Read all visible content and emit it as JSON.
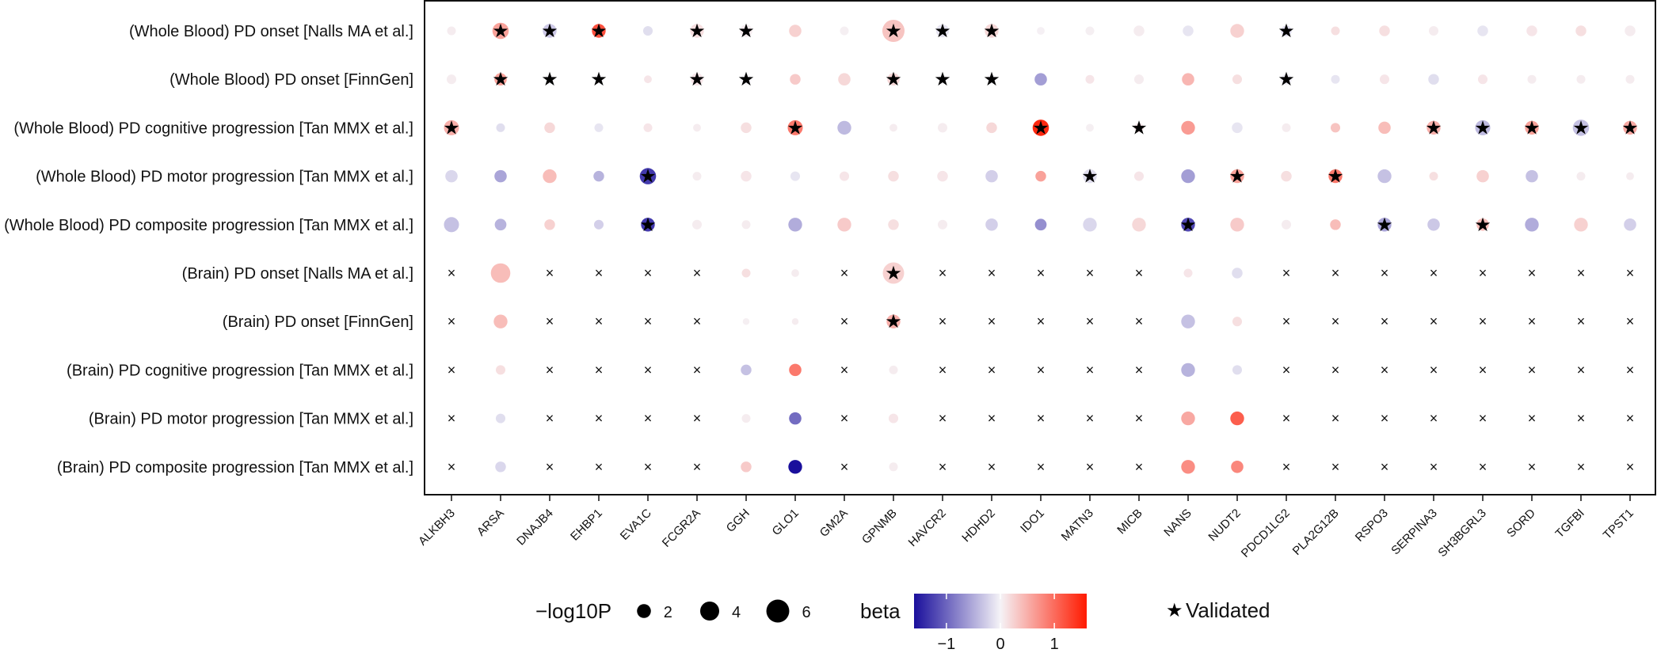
{
  "chart_data": {
    "type": "scatter",
    "title": "",
    "xlabel": "",
    "ylabel": "",
    "rows": [
      "(Whole Blood) PD onset [Nalls MA et al.]",
      "(Whole Blood) PD onset [FinnGen]",
      "(Whole Blood) PD cognitive progression [Tan MMX et al.]",
      "(Whole Blood) PD motor progression [Tan MMX et al.]",
      "(Whole Blood) PD composite progression [Tan MMX et al.]",
      "(Brain) PD onset [Nalls MA et al.]",
      "(Brain) PD onset [FinnGen]",
      "(Brain) PD cognitive progression [Tan MMX et al.]",
      "(Brain) PD motor progression [Tan MMX et al.]",
      "(Brain) PD composite progression [Tan MMX et al.]"
    ],
    "columns": [
      "ALKBH3",
      "ARSA",
      "DNAJB4",
      "EHBP1",
      "EVA1C",
      "FCGR2A",
      "GGH",
      "GLO1",
      "GM2A",
      "GPNMB",
      "HAVCR2",
      "HDHD2",
      "IDO1",
      "MATN3",
      "MICB",
      "NANS",
      "NUDT2",
      "PDCD1LG2",
      "PLA2G12B",
      "RSPO3",
      "SERPINA3",
      "SH3BGRL3",
      "SORD",
      "TGFBI",
      "TPST1"
    ],
    "beta": [
      [
        0.05,
        0.6,
        -0.3,
        1.2,
        -0.15,
        0.15,
        0.05,
        0.25,
        0.03,
        0.35,
        -0.1,
        0.2,
        0.02,
        0.03,
        0.05,
        -0.1,
        0.25,
        -0.15,
        0.15,
        0.15,
        0.05,
        -0.1,
        0.1,
        0.15,
        0.05
      ],
      [
        0.05,
        0.6,
        0.0,
        0.0,
        0.1,
        0.1,
        0.0,
        0.3,
        0.2,
        0.2,
        0.0,
        0.0,
        -0.6,
        0.1,
        0.05,
        0.45,
        0.15,
        -0.05,
        -0.1,
        0.1,
        -0.15,
        0.1,
        0.05,
        0.05,
        0.05
      ],
      [
        0.5,
        -0.15,
        0.2,
        -0.1,
        0.1,
        0.05,
        0.15,
        0.9,
        -0.4,
        0.05,
        0.05,
        0.2,
        1.5,
        0.03,
        0.1,
        0.65,
        -0.1,
        0.05,
        0.35,
        0.4,
        0.5,
        -0.4,
        0.6,
        -0.35,
        0.55
      ],
      [
        -0.2,
        -0.55,
        0.4,
        -0.45,
        -1.3,
        0.05,
        0.1,
        -0.1,
        0.1,
        0.15,
        0.1,
        -0.25,
        0.6,
        -0.15,
        0.1,
        -0.6,
        0.6,
        0.15,
        0.9,
        -0.35,
        0.15,
        0.25,
        -0.35,
        0.05,
        0.05
      ],
      [
        -0.35,
        -0.45,
        0.25,
        -0.25,
        -1.3,
        0.05,
        0.05,
        -0.5,
        0.3,
        0.15,
        0.05,
        -0.25,
        -0.7,
        -0.2,
        0.2,
        -1.2,
        0.3,
        0.05,
        0.4,
        -0.55,
        -0.3,
        0.4,
        -0.5,
        0.25,
        -0.25
      ],
      [
        null,
        0.4,
        null,
        null,
        null,
        null,
        0.15,
        0.05,
        null,
        0.25,
        null,
        null,
        null,
        null,
        null,
        0.1,
        -0.15,
        null,
        null,
        null,
        null,
        null,
        null,
        null,
        null
      ],
      [
        null,
        0.4,
        null,
        null,
        null,
        null,
        0.03,
        0.05,
        null,
        0.5,
        null,
        null,
        null,
        null,
        null,
        -0.35,
        0.15,
        null,
        null,
        null,
        null,
        null,
        null,
        null,
        null
      ],
      [
        null,
        0.15,
        null,
        null,
        null,
        null,
        -0.35,
        0.9,
        null,
        0.05,
        null,
        null,
        null,
        null,
        null,
        -0.45,
        -0.15,
        null,
        null,
        null,
        null,
        null,
        null,
        null,
        null
      ],
      [
        null,
        -0.15,
        null,
        null,
        null,
        null,
        0.05,
        -0.95,
        null,
        0.1,
        null,
        null,
        null,
        null,
        null,
        0.55,
        1.1,
        null,
        null,
        null,
        null,
        null,
        null,
        null,
        null
      ],
      [
        null,
        -0.2,
        null,
        null,
        null,
        null,
        0.3,
        -1.6,
        null,
        0.05,
        null,
        null,
        null,
        null,
        null,
        0.75,
        0.8,
        null,
        null,
        null,
        null,
        null,
        null,
        null,
        null
      ]
    ],
    "neglog10p": [
      [
        1.0,
        3.5,
        2.5,
        2.5,
        1.2,
        2.5,
        2.0,
        2.0,
        1.0,
        6.5,
        2.2,
        2.5,
        0.8,
        1.0,
        1.5,
        1.5,
        2.5,
        1.5,
        1.0,
        1.5,
        1.2,
        1.5,
        1.5,
        1.5,
        1.5
      ],
      [
        1.2,
        2.0,
        1.2,
        1.2,
        0.8,
        2.0,
        1.5,
        1.5,
        2.0,
        2.0,
        1.2,
        1.2,
        2.0,
        1.0,
        1.2,
        2.0,
        1.2,
        1.5,
        1.0,
        1.2,
        1.5,
        1.2,
        1.0,
        1.0,
        1.0
      ],
      [
        3.0,
        1.0,
        1.5,
        1.0,
        1.0,
        0.8,
        1.5,
        3.0,
        2.5,
        0.8,
        1.2,
        1.5,
        3.5,
        0.8,
        1.2,
        2.5,
        1.5,
        1.0,
        1.2,
        2.0,
        2.5,
        3.0,
        2.5,
        3.5,
        2.5
      ],
      [
        2.0,
        2.0,
        2.5,
        1.5,
        3.5,
        1.0,
        1.5,
        1.2,
        1.2,
        1.5,
        1.5,
        2.0,
        1.5,
        2.5,
        1.2,
        2.5,
        2.5,
        1.5,
        2.5,
        2.5,
        1.0,
        2.0,
        2.0,
        1.0,
        0.8
      ],
      [
        3.0,
        1.8,
        1.5,
        1.2,
        2.5,
        1.2,
        1.0,
        2.5,
        2.5,
        1.5,
        1.2,
        2.0,
        1.8,
        2.5,
        2.5,
        2.5,
        2.5,
        1.2,
        1.5,
        2.5,
        2.0,
        2.0,
        2.5,
        2.5,
        2.0
      ],
      [
        null,
        5.0,
        null,
        null,
        null,
        null,
        1.0,
        0.8,
        null,
        6.0,
        null,
        null,
        null,
        null,
        null,
        1.0,
        1.5,
        null,
        null,
        null,
        null,
        null,
        null,
        null,
        null
      ],
      [
        null,
        2.5,
        null,
        null,
        null,
        null,
        0.6,
        0.6,
        null,
        2.5,
        null,
        null,
        null,
        null,
        null,
        2.5,
        1.2,
        null,
        null,
        null,
        null,
        null,
        null,
        null,
        null
      ],
      [
        null,
        1.2,
        null,
        null,
        null,
        null,
        1.5,
        2.0,
        null,
        1.0,
        null,
        null,
        null,
        null,
        null,
        2.5,
        1.2,
        null,
        null,
        null,
        null,
        null,
        null,
        null,
        null
      ],
      [
        null,
        1.2,
        null,
        null,
        null,
        null,
        1.0,
        2.0,
        null,
        1.2,
        null,
        null,
        null,
        null,
        null,
        2.5,
        2.5,
        null,
        null,
        null,
        null,
        null,
        null,
        null,
        null
      ],
      [
        null,
        1.5,
        null,
        null,
        null,
        null,
        1.5,
        2.5,
        null,
        1.0,
        null,
        null,
        null,
        null,
        null,
        2.5,
        2.0,
        null,
        null,
        null,
        null,
        null,
        null,
        null,
        null
      ]
    ],
    "validated": [
      [
        0,
        1,
        1,
        1,
        0,
        1,
        1,
        0,
        0,
        1,
        1,
        1,
        0,
        0,
        0,
        0,
        0,
        1,
        0,
        0,
        0,
        0,
        0,
        0,
        0
      ],
      [
        0,
        1,
        1,
        1,
        0,
        1,
        1,
        0,
        0,
        1,
        1,
        1,
        0,
        0,
        0,
        0,
        0,
        1,
        0,
        0,
        0,
        0,
        0,
        0,
        0
      ],
      [
        1,
        0,
        0,
        0,
        0,
        0,
        0,
        1,
        0,
        0,
        0,
        0,
        1,
        0,
        1,
        0,
        0,
        0,
        0,
        0,
        1,
        1,
        1,
        1,
        1
      ],
      [
        0,
        0,
        0,
        0,
        1,
        0,
        0,
        0,
        0,
        0,
        0,
        0,
        0,
        1,
        0,
        0,
        1,
        0,
        1,
        0,
        0,
        0,
        0,
        0,
        0
      ],
      [
        0,
        0,
        0,
        0,
        1,
        0,
        0,
        0,
        0,
        0,
        0,
        0,
        0,
        0,
        0,
        1,
        0,
        0,
        0,
        1,
        0,
        1,
        0,
        0,
        0
      ],
      [
        0,
        0,
        0,
        0,
        0,
        0,
        0,
        0,
        0,
        1,
        0,
        0,
        0,
        0,
        0,
        0,
        0,
        0,
        0,
        0,
        0,
        0,
        0,
        0,
        0
      ],
      [
        0,
        0,
        0,
        0,
        0,
        0,
        0,
        0,
        0,
        1,
        0,
        0,
        0,
        0,
        0,
        0,
        0,
        0,
        0,
        0,
        0,
        0,
        0,
        0,
        0
      ],
      [
        0,
        0,
        0,
        0,
        0,
        0,
        0,
        0,
        0,
        0,
        0,
        0,
        0,
        0,
        0,
        0,
        0,
        0,
        0,
        0,
        0,
        0,
        0,
        0,
        0
      ],
      [
        0,
        0,
        0,
        0,
        0,
        0,
        0,
        0,
        0,
        0,
        0,
        0,
        0,
        0,
        0,
        0,
        0,
        0,
        0,
        0,
        0,
        0,
        0,
        0,
        0
      ],
      [
        0,
        0,
        0,
        0,
        0,
        0,
        0,
        0,
        0,
        0,
        0,
        0,
        0,
        0,
        0,
        0,
        0,
        0,
        0,
        0,
        0,
        0,
        0,
        0,
        0
      ]
    ],
    "missing_marker": "×",
    "validated_marker": "★",
    "legend": {
      "size_title": "−log10P",
      "size_values": [
        2,
        4,
        6
      ],
      "color_title": "beta",
      "color_ticks": [
        -1,
        0,
        1
      ],
      "color_tick_labels": [
        "−1",
        "0",
        "1"
      ],
      "color_range": [
        -1.6,
        1.6
      ],
      "color_low": "#1a0f9c",
      "color_mid": "#f5f3f7",
      "color_high": "#ff1a00",
      "validated_label": "Validated",
      "placement": "bottom"
    }
  }
}
